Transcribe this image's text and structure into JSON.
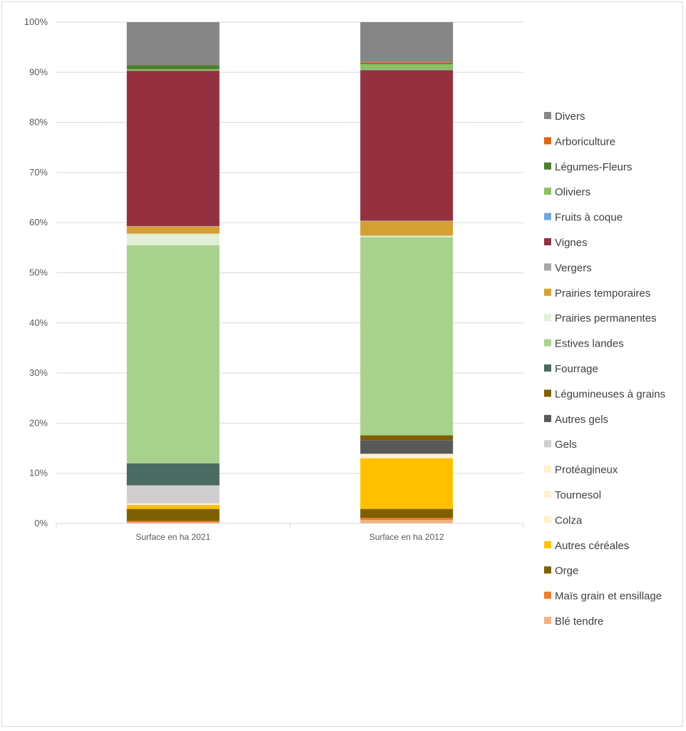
{
  "chart_data": {
    "type": "bar",
    "stacked": true,
    "percent_stacked": true,
    "categories": [
      "Surface en ha 2021",
      "Surface en ha 2012"
    ],
    "ylim": [
      0,
      100
    ],
    "yticks": [
      "0%",
      "10%",
      "20%",
      "30%",
      "40%",
      "50%",
      "60%",
      "70%",
      "80%",
      "90%",
      "100%"
    ],
    "grid": true,
    "legend_position": "right",
    "series": [
      {
        "name": "Blé tendre",
        "color": "#f4b183",
        "values": [
          0.2,
          0.7
        ]
      },
      {
        "name": "Maïs grain et ensillage",
        "color": "#ed7d31",
        "values": [
          0.3,
          0.4
        ]
      },
      {
        "name": "Orge",
        "color": "#7f6000",
        "values": [
          2.4,
          1.8
        ]
      },
      {
        "name": "Autres céréales",
        "color": "#ffc000",
        "values": [
          0.8,
          10.1
        ]
      },
      {
        "name": "Colza",
        "color": "#fff2cc",
        "values": [
          0.1,
          0.3
        ]
      },
      {
        "name": "Tournesol",
        "color": "#fff2cc",
        "values": [
          0.1,
          0.3
        ]
      },
      {
        "name": "Protéagineux",
        "color": "#fff2cc",
        "values": [
          0.1,
          0.3
        ]
      },
      {
        "name": "Gels",
        "color": "#d0cece",
        "values": [
          3.6,
          0.0
        ]
      },
      {
        "name": "Autres gels",
        "color": "#595959",
        "values": [
          0.0,
          2.7
        ]
      },
      {
        "name": "Légumineuses à grains",
        "color": "#7f6000",
        "values": [
          0.0,
          1.0
        ]
      },
      {
        "name": "Fourrage",
        "color": "#4a6a62",
        "values": [
          4.4,
          0.0
        ]
      },
      {
        "name": "Estives landes",
        "color": "#a9d18e",
        "values": [
          43.5,
          39.5
        ]
      },
      {
        "name": "Prairies permanentes",
        "color": "#e2efd9",
        "values": [
          2.3,
          0.3
        ]
      },
      {
        "name": "Prairies temporaires",
        "color": "#d4a033",
        "values": [
          1.4,
          2.9
        ]
      },
      {
        "name": "Vergers",
        "color": "#a6a6a6",
        "values": [
          0.1,
          0.1
        ]
      },
      {
        "name": "Vignes",
        "color": "#953040",
        "values": [
          31.0,
          30.0
        ]
      },
      {
        "name": "Fruits à coque",
        "color": "#6fa8dc",
        "values": [
          0.0,
          0.1
        ]
      },
      {
        "name": "Oliviers",
        "color": "#8cc063",
        "values": [
          0.3,
          1.1
        ]
      },
      {
        "name": "Légumes-Fleurs",
        "color": "#4e7f31",
        "values": [
          0.8,
          0.2
        ]
      },
      {
        "name": "Arboriculture",
        "color": "#dd6516",
        "values": [
          0.0,
          0.2
        ]
      },
      {
        "name": "Divers",
        "color": "#868686",
        "values": [
          8.6,
          8.0
        ]
      }
    ]
  }
}
